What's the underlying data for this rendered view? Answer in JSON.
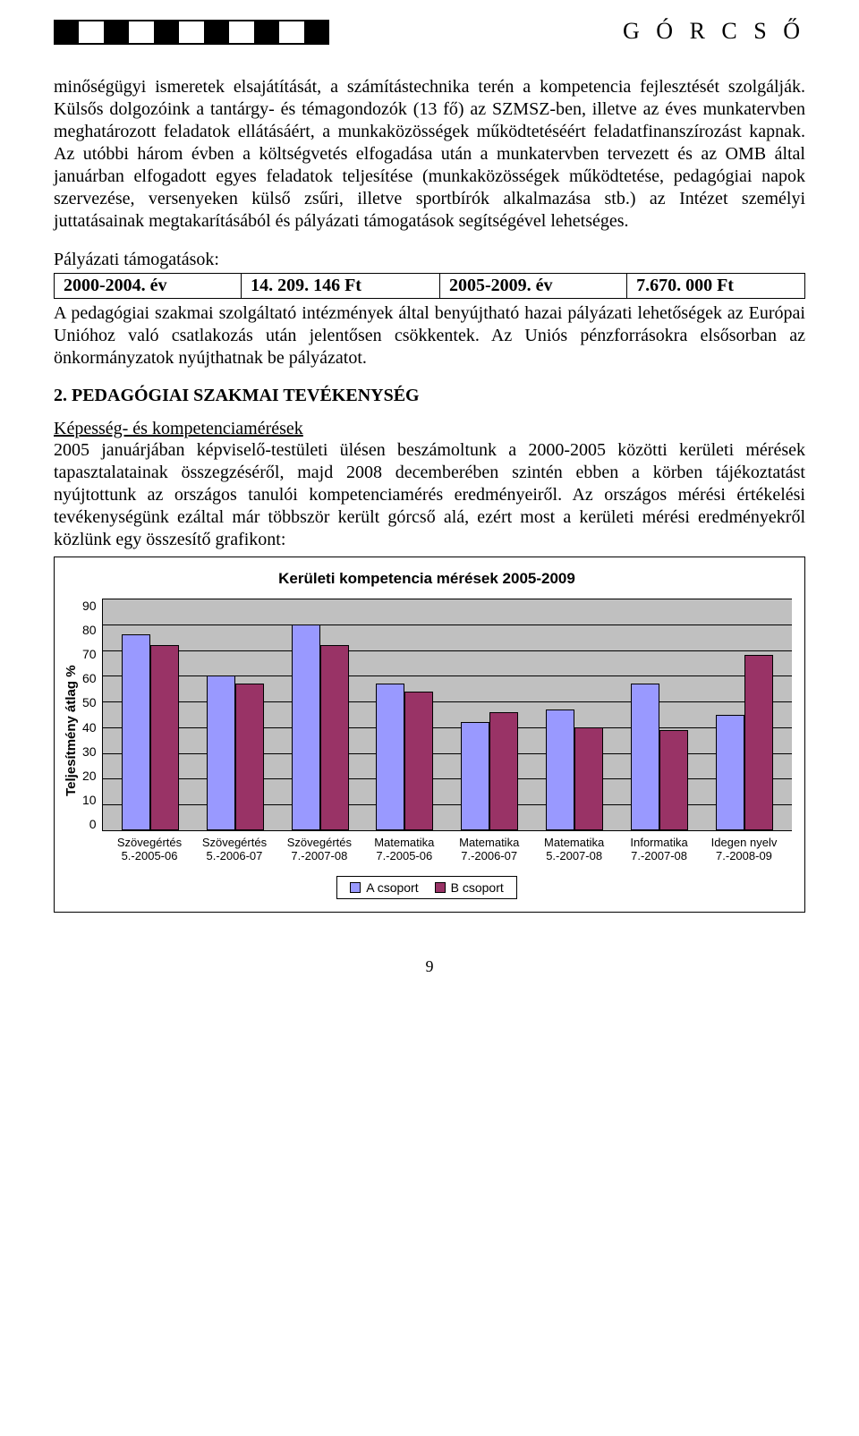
{
  "header": {
    "title": "G Ó R C S Ő"
  },
  "para1": "minőségügyi ismeretek elsajátítását, a számítástechnika terén a kompetencia fejlesztését szolgálják. Külsős dolgozóink a tantárgy- és témagondozók (13 fő) az SZMSZ-ben, illetve az éves munkatervben meghatározott feladatok ellátásáért, a munkaközösségek működtetéséért feladatfinanszírozást kapnak. Az utóbbi három évben a költségvetés elfogadása után a munkatervben tervezett és az OMB által januárban elfogadott egyes feladatok teljesítése (munkaközösségek működtetése, pedagógiai napok szervezése, versenyeken külső zsűri, illetve sportbírók alkalmazása stb.) az Intézet személyi juttatásainak megtakarításából és pályázati támogatások segítségével lehetséges.",
  "funding": {
    "label": "Pályázati támogatások:",
    "cells": [
      "2000-2004. év",
      "14. 209. 146 Ft",
      "2005-2009. év",
      "7.670. 000 Ft"
    ]
  },
  "para2": "A pedagógiai szakmai szolgáltató intézmények által benyújtható hazai pályázati lehetőségek az Európai Unióhoz való csatlakozás után jelentősen csökkentek. Az Uniós pénzforrásokra elsősorban az önkormányzatok nyújthatnak be pályázatot.",
  "section2": {
    "title": "2. PEDAGÓGIAI SZAKMAI TEVÉKENYSÉG",
    "subtitle": "Képesség- és kompetenciamérések",
    "body": "2005 januárjában képviselő-testületi ülésen beszámoltunk a 2000-2005 közötti kerületi mérések tapasztalatainak összegzéséről, majd 2008 decemberében szintén ebben a körben tájékoztatást nyújtottunk az országos tanulói kompetenciamérés eredményeiről. Az országos mérési értékelési tevékenységünk ezáltal már többször került górcső alá, ezért most a kerületi mérési eredményekről közlünk egy összesítő grafikont:"
  },
  "chart": {
    "type": "bar",
    "title": "Kerületi kompetencia mérések 2005-2009",
    "ylabel": "Teljesítmény átlag %",
    "ymax": 90,
    "yticks": [
      "90",
      "80",
      "70",
      "60",
      "50",
      "40",
      "30",
      "20",
      "10",
      "0"
    ],
    "colors": {
      "a": "#9999ff",
      "b": "#993366",
      "plot_bg": "#c0c0c0"
    },
    "categories": [
      {
        "label1": "Szövegértés",
        "label2": "5.-2005-06",
        "a": 76,
        "b": 72
      },
      {
        "label1": "Szövegértés",
        "label2": "5.-2006-07",
        "a": 60,
        "b": 57
      },
      {
        "label1": "Szövegértés",
        "label2": "7.-2007-08",
        "a": 80,
        "b": 72
      },
      {
        "label1": "Matematika",
        "label2": "7.-2005-06",
        "a": 57,
        "b": 54
      },
      {
        "label1": "Matematika",
        "label2": "7.-2006-07",
        "a": 42,
        "b": 46
      },
      {
        "label1": "Matematika",
        "label2": "5.-2007-08",
        "a": 47,
        "b": 40
      },
      {
        "label1": "Informatika",
        "label2": "7.-2007-08",
        "a": 57,
        "b": 39
      },
      {
        "label1": "Idegen nyelv",
        "label2": "7.-2008-09",
        "a": 45,
        "b": 68
      }
    ],
    "legend": {
      "a": "A csoport",
      "b": "B csoport"
    }
  },
  "page_number": "9"
}
